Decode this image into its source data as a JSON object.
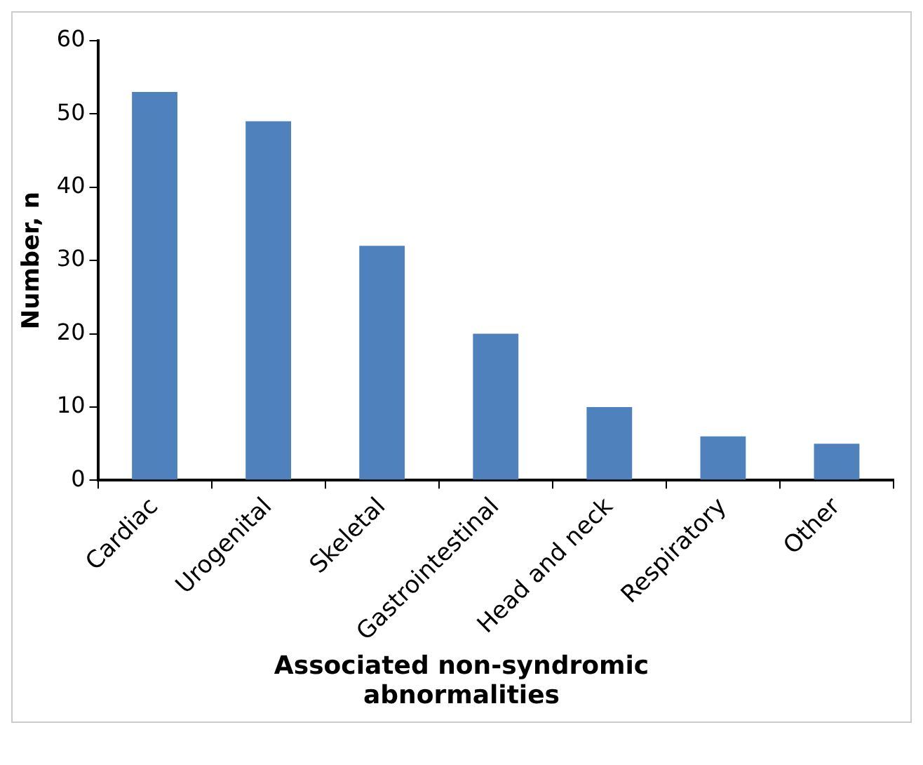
{
  "chart_data": {
    "type": "bar",
    "xlabel": "Associated non-syndromic abnormalities",
    "ylabel": "Number, n",
    "categories": [
      "Cardiac",
      "Urogenital",
      "Skeletal",
      "Gastrointestinal",
      "Head and neck",
      "Respiratory",
      "Other"
    ],
    "values": [
      53,
      49,
      32,
      20,
      10,
      6,
      5
    ],
    "color": "#4f81bd",
    "ylim": [
      0,
      60
    ],
    "yticks": [
      0,
      10,
      20,
      30,
      40,
      50,
      60
    ],
    "grid": false,
    "legend": false
  }
}
